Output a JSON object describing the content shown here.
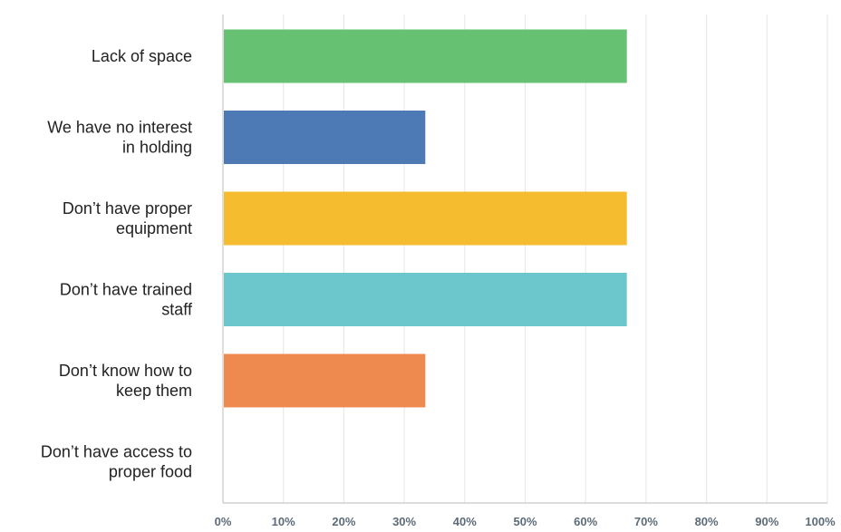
{
  "chart_data": {
    "type": "bar",
    "orientation": "horizontal",
    "categories": [
      [
        "Lack of space"
      ],
      [
        "We have no interest",
        "in holding"
      ],
      [
        "Don’t have proper",
        "equipment"
      ],
      [
        "Don’t have trained",
        "staff"
      ],
      [
        "Don’t know how to",
        "keep them"
      ],
      [
        "Don’t have access to",
        "proper food"
      ]
    ],
    "values": [
      66.67,
      33.33,
      66.67,
      66.67,
      33.33,
      0
    ],
    "colors": [
      "#66c173",
      "#4d7ab5",
      "#f6bc30",
      "#6cc7cd",
      "#ee8a4f",
      "#cccccc"
    ],
    "xlim": [
      0,
      100
    ],
    "xticks": [
      "0%",
      "10%",
      "20%",
      "30%",
      "40%",
      "50%",
      "60%",
      "70%",
      "80%",
      "90%",
      "100%"
    ],
    "grid": true,
    "legend": "none"
  }
}
